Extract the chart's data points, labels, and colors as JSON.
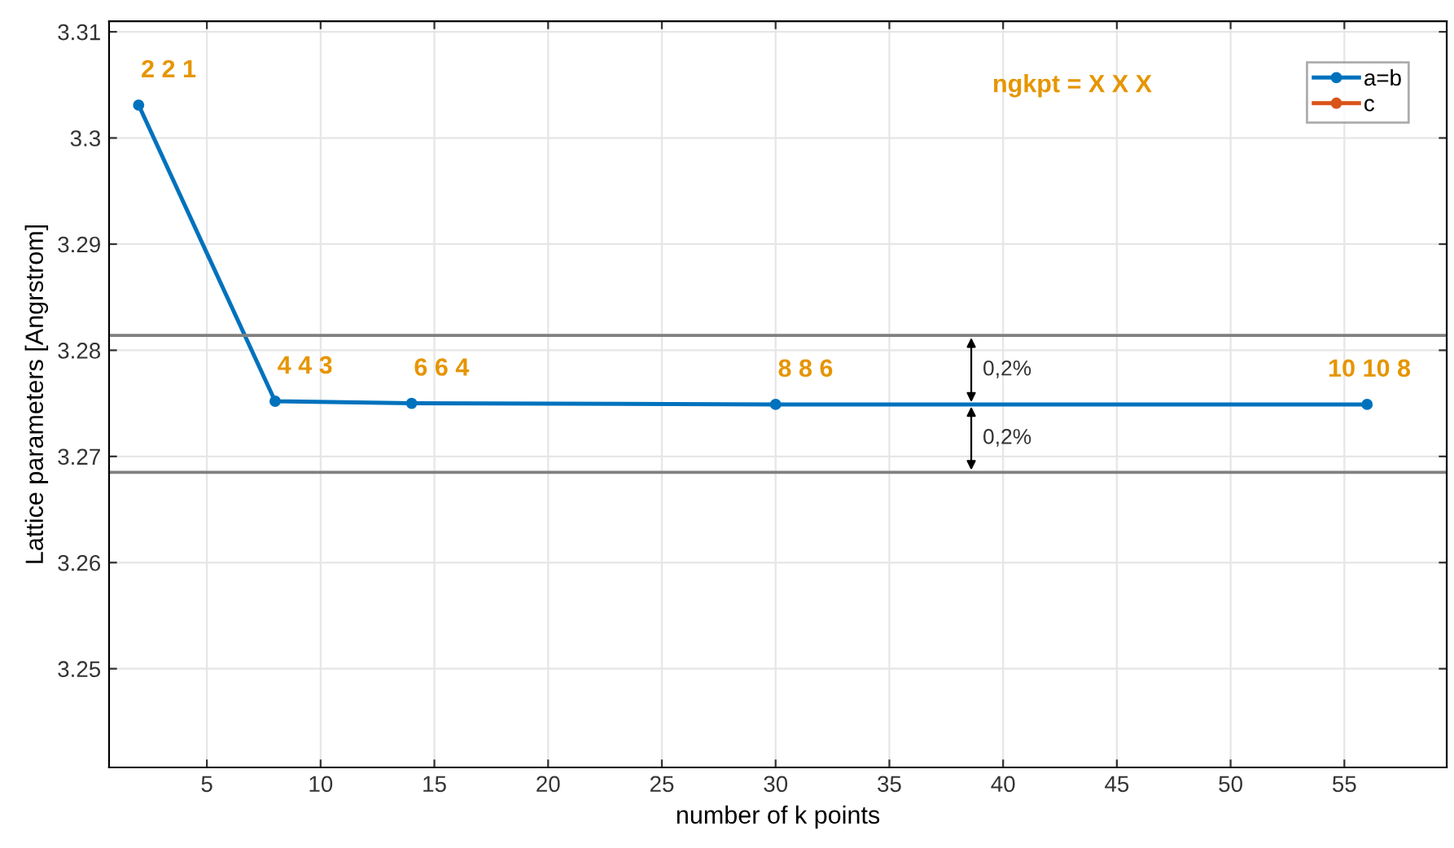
{
  "chart_data": {
    "type": "line",
    "xlabel": "number of k points",
    "ylabel": "Lattice parameters [Angrstrom]",
    "x": [
      2,
      8,
      14,
      30,
      56
    ],
    "series": [
      {
        "name": "a=b",
        "color": "#0072bd",
        "values": [
          3.3031,
          3.2752,
          3.275,
          3.2749,
          3.2749
        ]
      },
      {
        "name": "c",
        "color": "#d95319",
        "values": [
          null,
          null,
          null,
          null,
          null
        ]
      }
    ],
    "xlim": [
      0.7,
      59.5
    ],
    "xticks": [
      5,
      10,
      15,
      20,
      25,
      30,
      35,
      40,
      45,
      50,
      55
    ],
    "ylim": [
      3.2407,
      3.311
    ],
    "yticks": [
      3.25,
      3.26,
      3.27,
      3.28,
      3.29,
      3.3,
      3.31
    ],
    "ref_lines": [
      {
        "axis": "y",
        "value": 3.2814,
        "color": "#808080"
      },
      {
        "axis": "y",
        "value": 3.2685,
        "color": "#808080"
      }
    ],
    "annotations": [
      {
        "text": "2 2 1",
        "x": 2,
        "y": 3.3031
      },
      {
        "text": "4 4 3",
        "x": 8,
        "y": 3.2752
      },
      {
        "text": "6 6 4",
        "x": 14,
        "y": 3.275
      },
      {
        "text": "8 8 6",
        "x": 30,
        "y": 3.2749
      },
      {
        "text": "10 10 8",
        "x": 56,
        "y": 3.2749
      },
      "ngkpt = X X X",
      {
        "text": "0,2%",
        "x": 38.6,
        "y": 3.2814
      },
      {
        "text": "0,2%",
        "x": 38.6,
        "y": 3.2685
      }
    ],
    "grid": true,
    "legend": "top right",
    "marker": "circle",
    "line_style": "solid"
  }
}
